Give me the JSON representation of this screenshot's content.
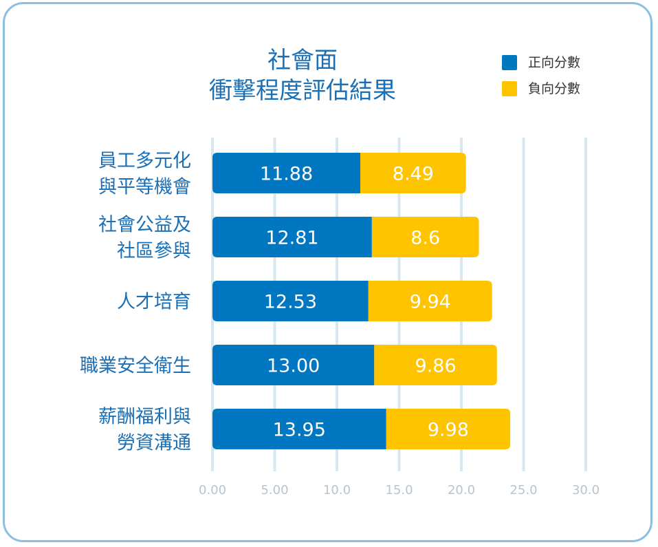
{
  "chart_data": {
    "type": "bar",
    "orientation": "horizontal",
    "stacked": true,
    "title_lines": [
      "社會面",
      "衝擊程度評估結果"
    ],
    "categories": [
      [
        "員工多元化",
        "與平等機會"
      ],
      [
        "社會公益及",
        "社區參與"
      ],
      [
        "人才培育"
      ],
      [
        "職業安全衛生"
      ],
      [
        "薪酬福利與",
        "勞資溝通"
      ]
    ],
    "series": [
      {
        "name": "正向分數",
        "color": "#0077c0",
        "values": [
          11.88,
          12.81,
          12.53,
          13.0,
          13.95
        ],
        "labels": [
          "11.88",
          "12.81",
          "12.53",
          "13.00",
          "13.95"
        ]
      },
      {
        "name": "負向分數",
        "color": "#ffc400",
        "values": [
          8.49,
          8.6,
          9.94,
          9.86,
          9.98
        ],
        "labels": [
          "8.49",
          "8.6",
          "9.94",
          "9.86",
          "9.98"
        ]
      }
    ],
    "xlim": [
      0,
      30
    ],
    "ticks": [
      "0.00",
      "5.00",
      "10.0",
      "15.0",
      "20.0",
      "25.0",
      "30.0"
    ],
    "grid": true,
    "legend_position": "top-right"
  }
}
